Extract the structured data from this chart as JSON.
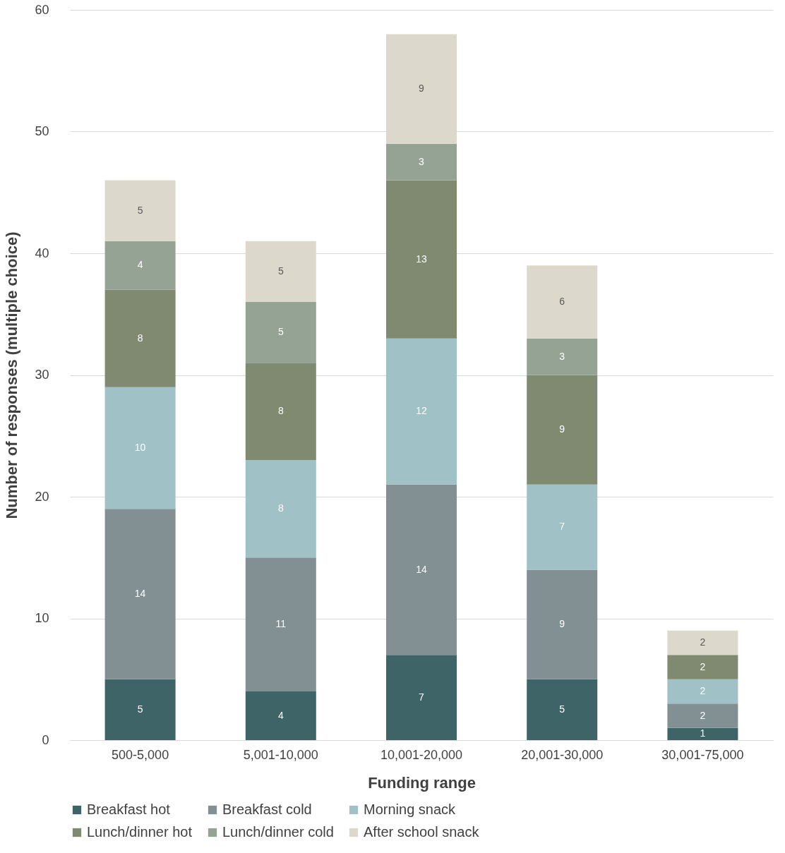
{
  "chart_data": {
    "type": "bar",
    "stacked": true,
    "xlabel": "Funding range",
    "ylabel": "Number of responses (multiple choice)",
    "categories": [
      "500-5,000",
      "5,001-10,000",
      "10,001-20,000",
      "20,001-30,000",
      "30,001-75,000"
    ],
    "series": [
      {
        "name": "Breakfast hot",
        "color": "#3f6467",
        "values": [
          5,
          4,
          7,
          5,
          1
        ]
      },
      {
        "name": "Breakfast cold",
        "color": "#828f93",
        "values": [
          14,
          11,
          14,
          9,
          2
        ]
      },
      {
        "name": "Morning snack",
        "color": "#a0c1c5",
        "values": [
          10,
          8,
          12,
          7,
          2
        ]
      },
      {
        "name": "Lunch/dinner hot",
        "color": "#7f8a71",
        "values": [
          8,
          8,
          13,
          9,
          2
        ]
      },
      {
        "name": "Lunch/dinner cold",
        "color": "#95a394",
        "values": [
          4,
          5,
          3,
          3,
          null
        ]
      },
      {
        "name": "After school snack",
        "color": "#ddd8cc",
        "values": [
          5,
          5,
          9,
          6,
          2
        ]
      }
    ],
    "ylim": [
      0,
      60
    ],
    "yticks": [
      0,
      10,
      20,
      30,
      40,
      50,
      60
    ],
    "grid": "y",
    "legend": "bottom",
    "data_labels": true
  }
}
